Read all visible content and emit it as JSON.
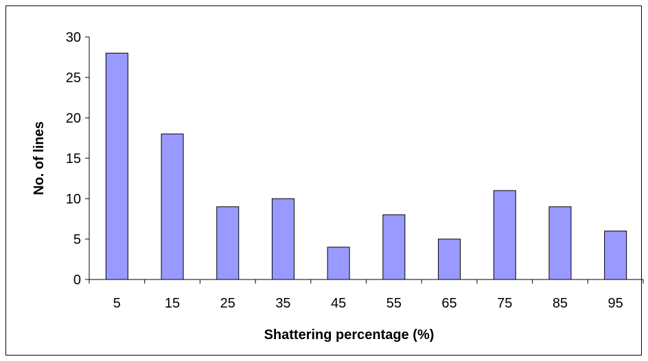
{
  "chart_data": {
    "type": "bar",
    "categories": [
      "5",
      "15",
      "25",
      "35",
      "45",
      "55",
      "65",
      "75",
      "85",
      "95"
    ],
    "values": [
      28,
      18,
      9,
      10,
      4,
      8,
      5,
      11,
      9,
      6
    ],
    "title": "",
    "xlabel": "Shattering percentage (%)",
    "ylabel": "No. of lines",
    "ylim": [
      0,
      30
    ],
    "yticks": [
      0,
      5,
      10,
      15,
      20,
      25,
      30
    ],
    "grid": false,
    "legend": "none",
    "bar_color": "#9999ff"
  }
}
